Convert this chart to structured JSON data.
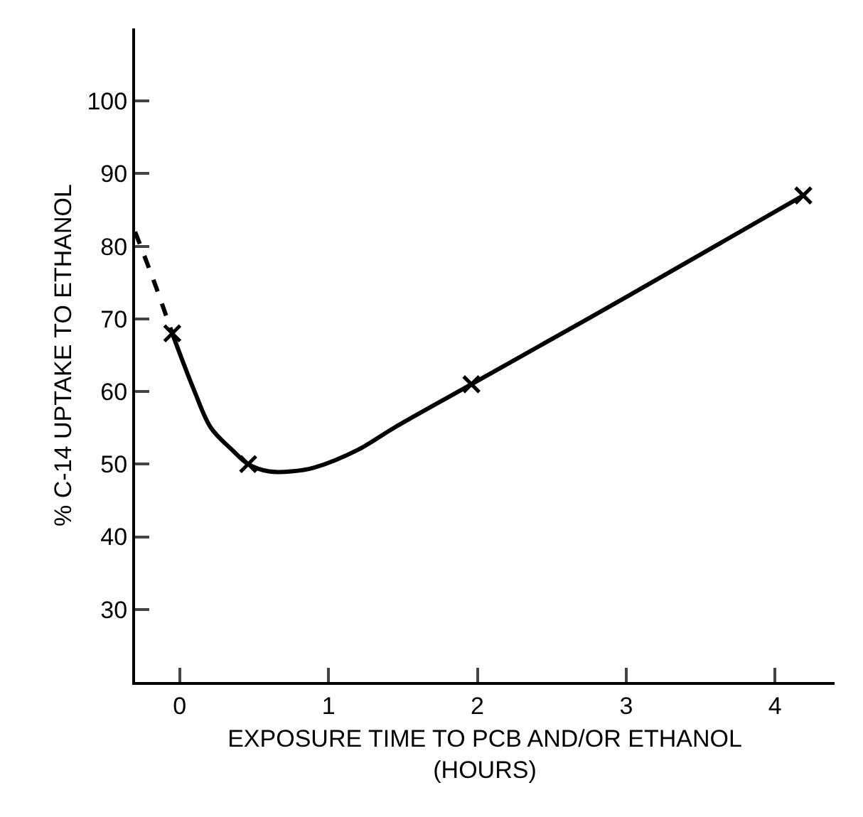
{
  "chart_data": {
    "type": "line",
    "xlabel": "EXPOSURE TIME TO PCB AND/OR ETHANOL\n(HOURS)",
    "ylabel": "% C-14 UPTAKE TO ETHANOL",
    "xlim": [
      -0.3,
      4.4
    ],
    "ylim": [
      20,
      110
    ],
    "xticks": [
      0,
      1,
      2,
      3,
      4
    ],
    "yticks": [
      30,
      40,
      50,
      60,
      70,
      80,
      90,
      100
    ],
    "grid": false,
    "series": [
      {
        "color": "#000000",
        "line_style": "dashed",
        "marker": "none",
        "x": [
          -0.3,
          -0.17,
          -0.05
        ],
        "values": [
          82,
          75,
          68
        ]
      },
      {
        "color": "#000000",
        "line_style": "solid",
        "marker": "none",
        "x": [
          -0.05,
          0.1,
          0.21,
          0.35,
          0.46,
          0.6,
          0.75,
          0.9,
          1.2,
          1.44,
          1.96,
          3,
          4.19
        ],
        "values": [
          68,
          60,
          55,
          52,
          50,
          49,
          49,
          49.5,
          52,
          55,
          61,
          73,
          87
        ]
      },
      {
        "type": "scatter",
        "color": "#000000",
        "marker": "cross",
        "x": [
          -0.05,
          0.46,
          1.96,
          4.19
        ],
        "values": [
          68,
          50,
          61,
          87
        ]
      }
    ]
  }
}
